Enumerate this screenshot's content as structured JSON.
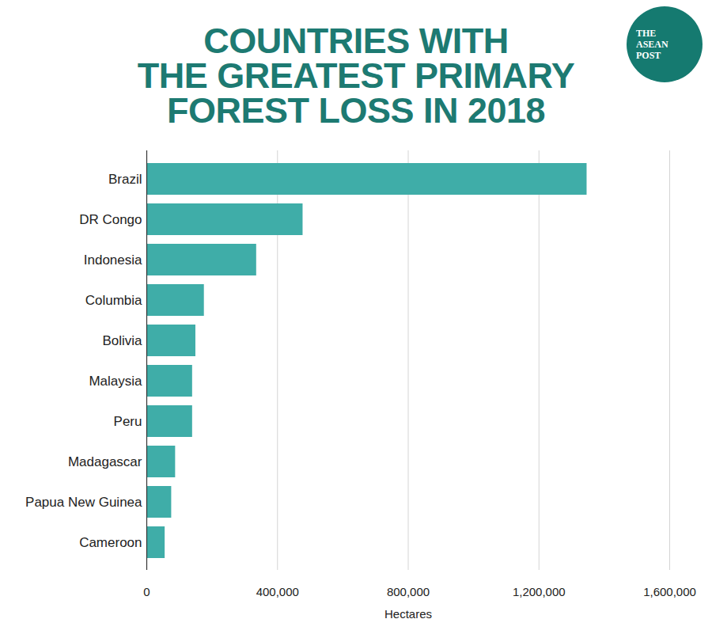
{
  "chart_data": {
    "type": "bar",
    "orientation": "horizontal",
    "title": "COUNTRIES WITH\nTHE GREATEST PRIMARY\nFOREST LOSS IN 2018",
    "logo": "THE\nASEAN\nPOST",
    "x_label": "Hectares",
    "categories": [
      "Brazil",
      "DR Congo",
      "Indonesia",
      "Columbia",
      "Bolivia",
      "Malaysia",
      "Peru",
      "Madagascar",
      "Papua New Guinea",
      "Cameroon"
    ],
    "values": [
      1347000,
      478000,
      336000,
      176000,
      150000,
      140000,
      140000,
      88000,
      76000,
      56000
    ],
    "color": "#3fada8",
    "xlim": [
      0,
      1600000
    ],
    "xticks": [
      0,
      {
        "value": 400000,
        "label": "400,000"
      },
      {
        "value": 800000,
        "label": "800,000"
      },
      {
        "value": 1200000,
        "label": "1,200,000"
      },
      {
        "value": 1600000,
        "label": "1,600,000"
      }
    ],
    "grid": true
  }
}
